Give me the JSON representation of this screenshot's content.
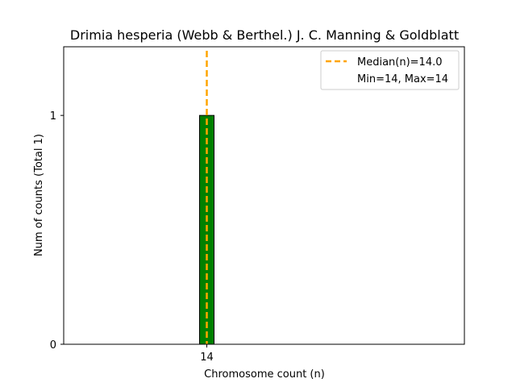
{
  "chart_data": {
    "type": "bar",
    "title": "Drimia hesperia (Webb & Berthel.) J. C. Manning & Goldblatt",
    "xlabel": "Chromosome count (n)",
    "ylabel": "Num of counts     (Total 1)",
    "categories": [
      "14"
    ],
    "values": [
      1
    ],
    "x_ticks": [
      "14"
    ],
    "y_ticks": [
      0,
      1
    ],
    "xlim": [
      9,
      23
    ],
    "ylim": [
      0,
      1.3
    ],
    "grid": false,
    "bar_color": "#008000",
    "bar_edge_color": "#000000",
    "median_line": {
      "label": "Median(n)=14.0",
      "x": 14.0,
      "color": "#FFA500",
      "style": "dashed"
    },
    "legend": {
      "placement": "top-right",
      "entries": [
        "Median(n)=14.0",
        "Min=14, Max=14"
      ]
    }
  }
}
